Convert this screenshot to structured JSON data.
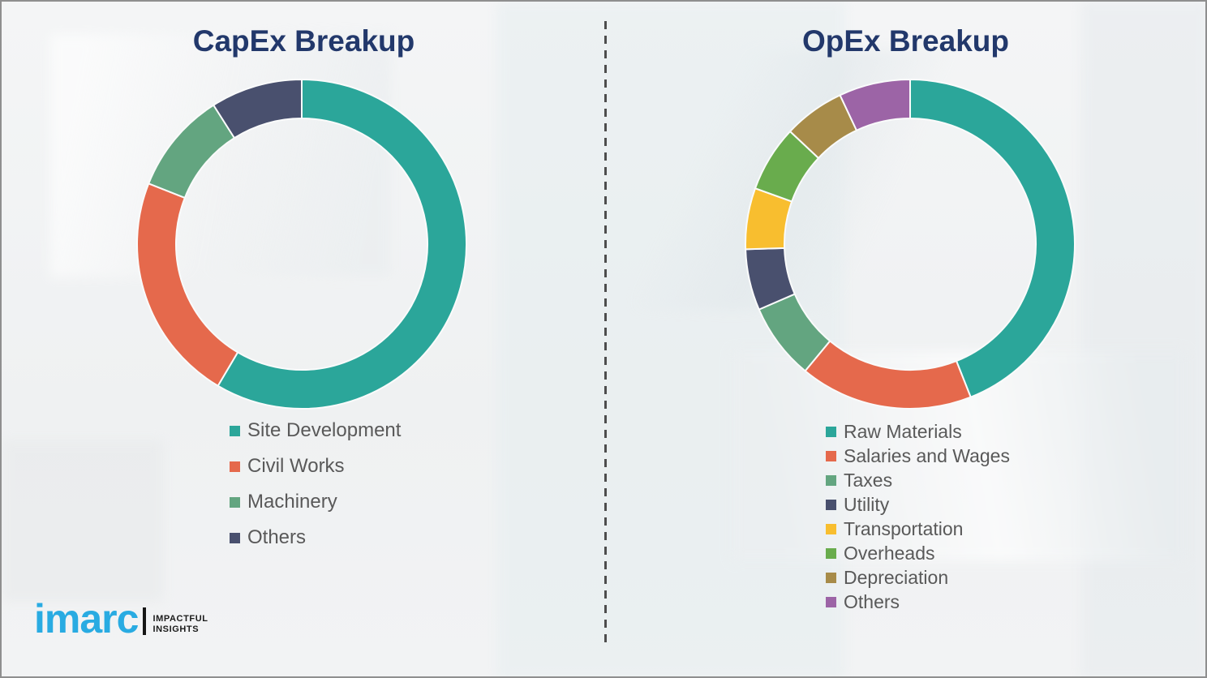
{
  "title_color": "#22386B",
  "legend_text_color": "#595959",
  "background_color": "#F2F3F4",
  "divider_style": "vertical-dashed",
  "chart_data": [
    {
      "type": "pie",
      "subtype": "donut",
      "title": "CapEx Breakup",
      "categories": [
        "Site Development",
        "Civil Works",
        "Machinery",
        "Others"
      ],
      "values": [
        58.5,
        22.5,
        10,
        9
      ],
      "colors": [
        "#2BA69A",
        "#E5694C",
        "#63A580",
        "#49506E"
      ],
      "start_angle_deg": 0,
      "direction": "clockwise",
      "legend_position": "below",
      "data_labels": false
    },
    {
      "type": "pie",
      "subtype": "donut",
      "title": "OpEx Breakup",
      "categories": [
        "Raw Materials",
        "Salaries and Wages",
        "Taxes",
        "Utility",
        "Transportation",
        "Overheads",
        "Depreciation",
        "Others"
      ],
      "values": [
        44,
        17,
        7.5,
        6,
        6,
        6.5,
        6,
        7
      ],
      "colors": [
        "#2BA69A",
        "#E5694C",
        "#63A580",
        "#49506E",
        "#F8BE2F",
        "#69AC4D",
        "#A78B49",
        "#9C64A6"
      ],
      "start_angle_deg": 0,
      "direction": "clockwise",
      "legend_position": "below",
      "data_labels": false
    }
  ],
  "logo": {
    "brand": "imarc",
    "brand_color": "#29ABE2",
    "tagline_line1": "IMPACTFUL",
    "tagline_line2": "INSIGHTS"
  }
}
